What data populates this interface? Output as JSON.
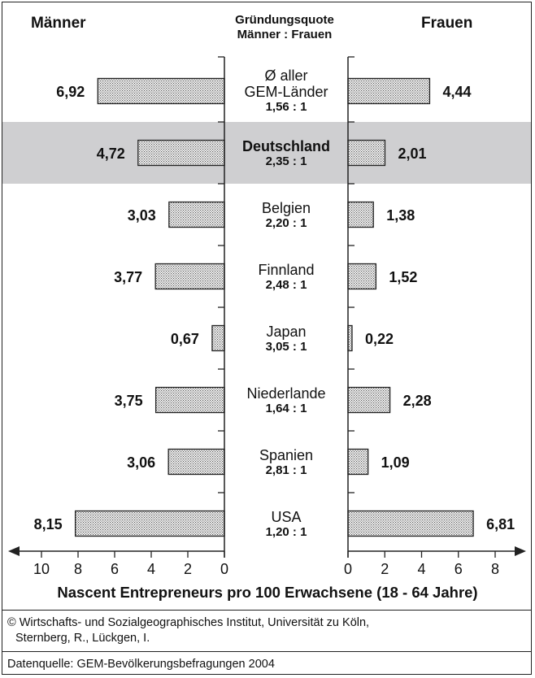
{
  "header": {
    "left": "Männer",
    "center_line1": "Gründungsquote",
    "center_line2": "Männer : Frauen",
    "right": "Frauen"
  },
  "chart_data": {
    "type": "bar",
    "orientation": "horizontal-butterfly",
    "categories": [
      {
        "name_lines": [
          "Ø aller",
          "GEM-Länder"
        ],
        "ratio": "1,56 : 1",
        "men": 6.92,
        "women": 4.44,
        "men_label": "6,92",
        "women_label": "4,44",
        "highlight": false
      },
      {
        "name_lines": [
          "Deutschland"
        ],
        "ratio": "2,35 : 1",
        "men": 4.72,
        "women": 2.01,
        "men_label": "4,72",
        "women_label": "2,01",
        "highlight": true
      },
      {
        "name_lines": [
          "Belgien"
        ],
        "ratio": "2,20 : 1",
        "men": 3.03,
        "women": 1.38,
        "men_label": "3,03",
        "women_label": "1,38",
        "highlight": false
      },
      {
        "name_lines": [
          "Finnland"
        ],
        "ratio": "2,48 : 1",
        "men": 3.77,
        "women": 1.52,
        "men_label": "3,77",
        "women_label": "1,52",
        "highlight": false
      },
      {
        "name_lines": [
          "Japan"
        ],
        "ratio": "3,05 : 1",
        "men": 0.67,
        "women": 0.22,
        "men_label": "0,67",
        "women_label": "0,22",
        "highlight": false
      },
      {
        "name_lines": [
          "Niederlande"
        ],
        "ratio": "1,64 : 1",
        "men": 3.75,
        "women": 2.28,
        "men_label": "3,75",
        "women_label": "2,28",
        "highlight": false
      },
      {
        "name_lines": [
          "Spanien"
        ],
        "ratio": "2,81 : 1",
        "men": 3.06,
        "women": 1.09,
        "men_label": "3,06",
        "women_label": "1,09",
        "highlight": false
      },
      {
        "name_lines": [
          "USA"
        ],
        "ratio": "1,20 : 1",
        "men": 8.15,
        "women": 6.81,
        "men_label": "8,15",
        "women_label": "6,81",
        "highlight": false
      }
    ],
    "men_ticks": [
      10,
      8,
      6,
      4,
      2,
      0
    ],
    "women_ticks": [
      0,
      2,
      4,
      6,
      8
    ],
    "men_xlim": [
      0,
      10.5
    ],
    "women_xlim": [
      0,
      8.5
    ],
    "xlabel": "Nascent Entrepreneurs pro 100 Erwachsene (18 - 64 Jahre)",
    "bar_pattern": "dotted",
    "highlight_color": "#cfcfd1"
  },
  "footer": {
    "copyright_line1": "© Wirtschafts- und Sozialgeographisches Institut, Universität zu Köln,",
    "copyright_line2": "Sternberg, R., Lückgen, I.",
    "source": "Datenquelle: GEM-Bevölkerungsbefragungen 2004"
  }
}
